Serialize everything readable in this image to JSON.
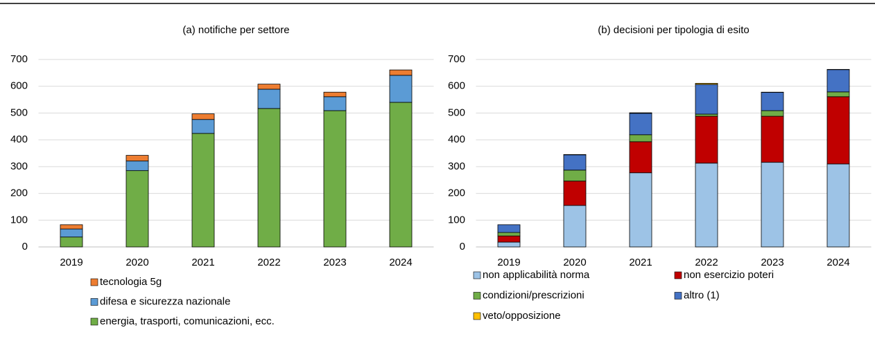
{
  "chart_data": [
    {
      "type": "stacked_bar",
      "title": "(a) notifiche per settore",
      "categories": [
        "2019",
        "2020",
        "2021",
        "2022",
        "2023",
        "2024"
      ],
      "series": [
        {
          "name": "energia, trasporti, comunicazioni, ecc.",
          "color": "#70ad47",
          "values": [
            37,
            285,
            424,
            517,
            509,
            540
          ]
        },
        {
          "name": "difesa e sicurezza nazionale",
          "color": "#5b9bd5",
          "values": [
            30,
            36,
            52,
            72,
            52,
            101
          ]
        },
        {
          "name": "tecnologia 5g",
          "color": "#ed7d31",
          "values": [
            16,
            21,
            21,
            19,
            17,
            20
          ]
        }
      ],
      "ylim": [
        0,
        700
      ],
      "yticks": [
        0,
        100,
        200,
        300,
        400,
        500,
        600,
        700
      ],
      "grid": true
    },
    {
      "type": "stacked_bar",
      "title": "(b) decisioni per tipologia di esito",
      "categories": [
        "2019",
        "2020",
        "2021",
        "2022",
        "2023",
        "2024"
      ],
      "series": [
        {
          "name": "non applicabilità norma",
          "color": "#9dc3e6",
          "values": [
            18,
            155,
            277,
            313,
            316,
            310
          ]
        },
        {
          "name": "non esercizio poteri",
          "color": "#c00000",
          "values": [
            23,
            91,
            116,
            175,
            172,
            251
          ]
        },
        {
          "name": "condizioni/prescrizioni",
          "color": "#70ad47",
          "values": [
            13,
            41,
            26,
            8,
            21,
            18
          ]
        },
        {
          "name": "altro (1)",
          "color": "#4472c4",
          "values": [
            29,
            57,
            80,
            111,
            68,
            83
          ]
        },
        {
          "name": "veto/opposizione",
          "color": "#ffc000",
          "values": [
            0,
            1,
            2,
            4,
            1,
            1
          ]
        }
      ],
      "ylim": [
        0,
        700
      ],
      "yticks": [
        0,
        100,
        200,
        300,
        400,
        500,
        600,
        700
      ],
      "grid": true
    }
  ]
}
